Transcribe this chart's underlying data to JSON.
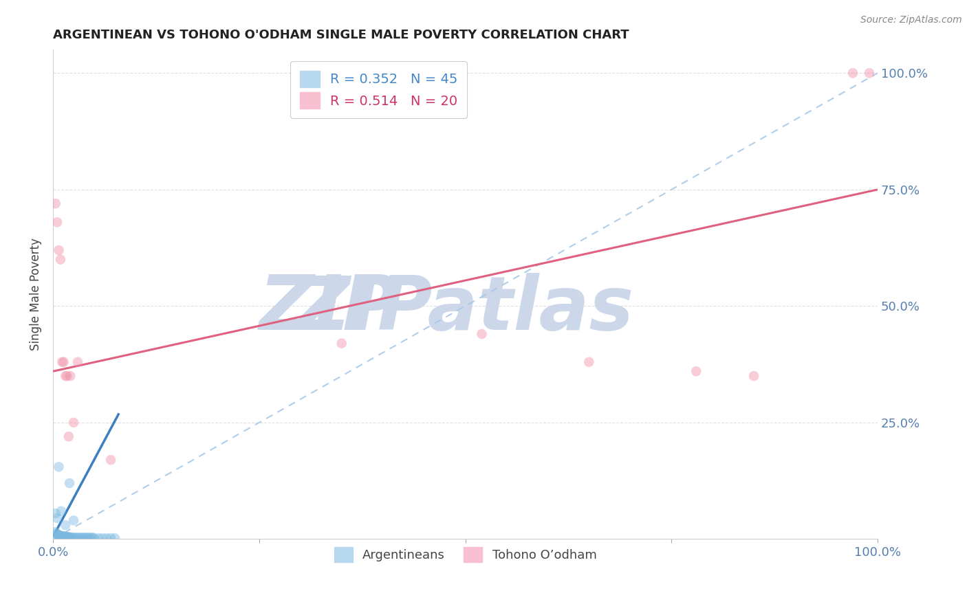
{
  "title": "ARGENTINEAN VS TOHONO O'ODHAM SINGLE MALE POVERTY CORRELATION CHART",
  "source": "Source: ZipAtlas.com",
  "ylabel": "Single Male Poverty",
  "legend_entries": [
    {
      "label": "R = 0.352   N = 45",
      "color": "#8ec4e8"
    },
    {
      "label": "R = 0.514   N = 20",
      "color": "#f5a0b5"
    }
  ],
  "legend_labels": [
    "Argentineans",
    "Tohono O’odham"
  ],
  "watermark": "ZIPatlas",
  "blue_dots_x": [
    0.003,
    0.004,
    0.005,
    0.006,
    0.007,
    0.008,
    0.009,
    0.01,
    0.011,
    0.012,
    0.013,
    0.014,
    0.015,
    0.016,
    0.017,
    0.018,
    0.019,
    0.02,
    0.022,
    0.024,
    0.026,
    0.028,
    0.03,
    0.032,
    0.034,
    0.036,
    0.038,
    0.04,
    0.042,
    0.044,
    0.046,
    0.048,
    0.05,
    0.055,
    0.06,
    0.065,
    0.07,
    0.075,
    0.003,
    0.005,
    0.007,
    0.01,
    0.015,
    0.02,
    0.025
  ],
  "blue_dots_y": [
    0.015,
    0.012,
    0.01,
    0.009,
    0.008,
    0.008,
    0.007,
    0.007,
    0.006,
    0.006,
    0.006,
    0.005,
    0.005,
    0.005,
    0.005,
    0.004,
    0.004,
    0.004,
    0.004,
    0.003,
    0.003,
    0.003,
    0.003,
    0.003,
    0.003,
    0.003,
    0.003,
    0.003,
    0.003,
    0.003,
    0.003,
    0.003,
    0.002,
    0.002,
    0.002,
    0.002,
    0.002,
    0.002,
    0.055,
    0.045,
    0.155,
    0.06,
    0.03,
    0.12,
    0.04
  ],
  "pink_dots_x": [
    0.003,
    0.005,
    0.007,
    0.009,
    0.011,
    0.013,
    0.015,
    0.017,
    0.019,
    0.021,
    0.025,
    0.03,
    0.07,
    0.35,
    0.52,
    0.65,
    0.78,
    0.85,
    0.97,
    0.99
  ],
  "pink_dots_y": [
    0.72,
    0.68,
    0.62,
    0.6,
    0.38,
    0.38,
    0.35,
    0.35,
    0.22,
    0.35,
    0.25,
    0.38,
    0.17,
    0.42,
    0.44,
    0.38,
    0.36,
    0.35,
    1.0,
    1.0
  ],
  "blue_line_x": [
    0.0,
    0.08
  ],
  "blue_line_y": [
    0.005,
    0.27
  ],
  "pink_line_x": [
    0.0,
    1.0
  ],
  "pink_line_y": [
    0.36,
    0.75
  ],
  "diag_line_x": [
    0.0,
    1.0
  ],
  "diag_line_y": [
    0.0,
    1.0
  ],
  "xlim": [
    0.0,
    1.0
  ],
  "ylim": [
    0.0,
    1.05
  ],
  "background_color": "#ffffff",
  "dot_size": 110,
  "dot_alpha": 0.45,
  "blue_color": "#7ab8e0",
  "pink_color": "#f090a8",
  "blue_line_color": "#3a7fc1",
  "pink_line_color": "#e06080",
  "diag_color": "#a8c8e8",
  "grid_color": "#dddddd",
  "title_color": "#222222",
  "watermark_color": "#ccd8ea",
  "source_color": "#888888",
  "tick_color": "#5580b0",
  "ylabel_color": "#444444"
}
